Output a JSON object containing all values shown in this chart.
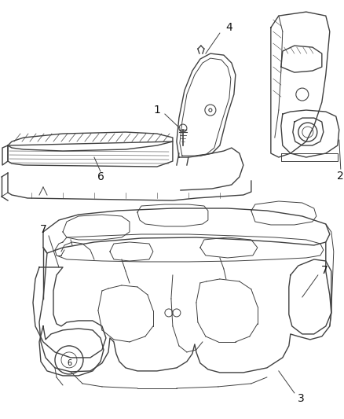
{
  "bg_color": "#ffffff",
  "line_color": "#404040",
  "label_color": "#111111",
  "fig_width": 4.38,
  "fig_height": 5.33,
  "dpi": 100
}
